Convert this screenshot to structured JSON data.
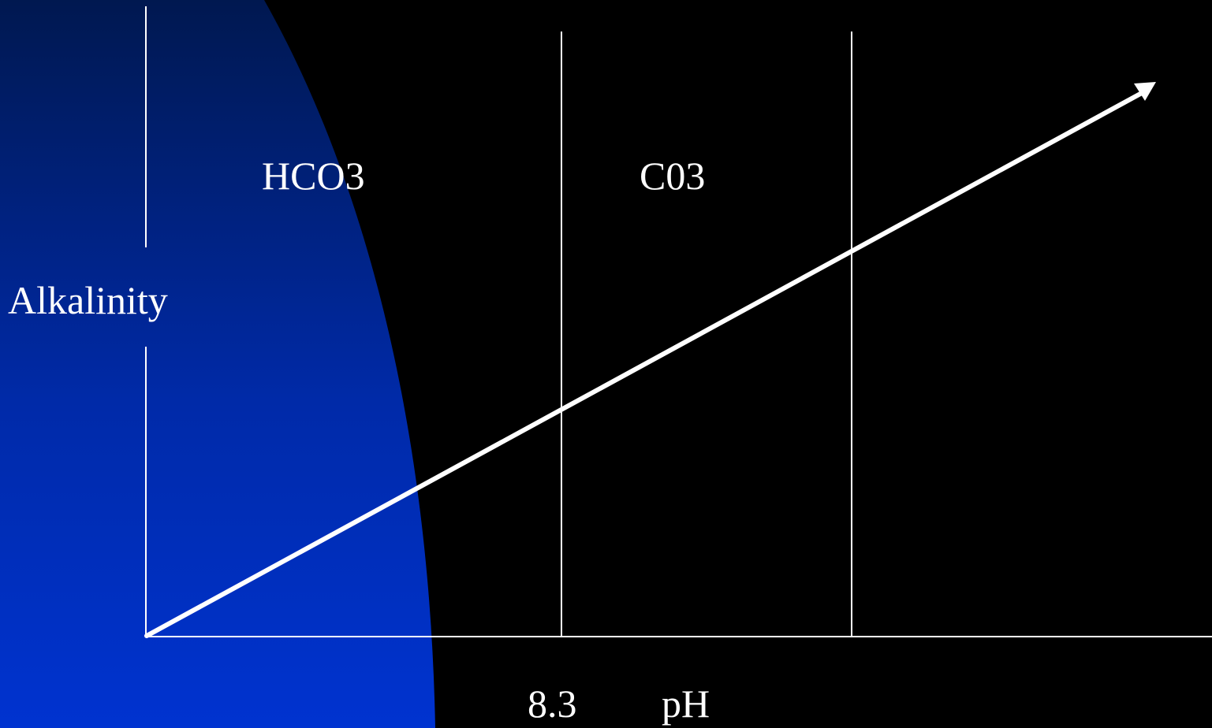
{
  "colors": {
    "background": "#000000",
    "blue_top": "#001850",
    "blue_bottom": "#0033d0",
    "line": "#ffffff"
  },
  "diagram": {
    "y_axis_label": "Alkalinity",
    "x_axis_label": "pH",
    "x_tick_label": "8.3",
    "region_labels": [
      "HCO3",
      "C03"
    ]
  }
}
